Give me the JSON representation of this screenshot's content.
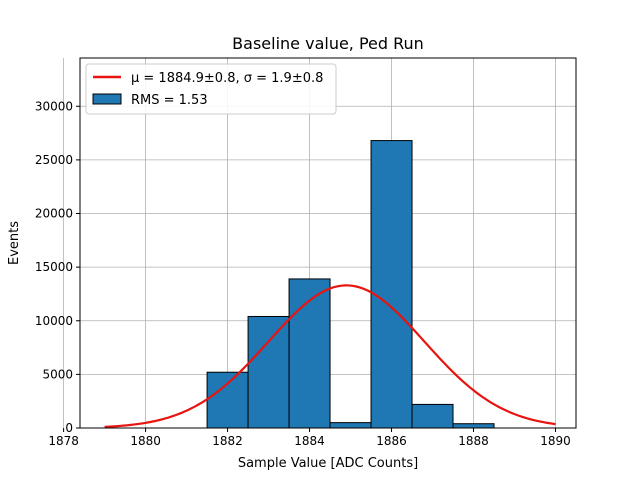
{
  "chart_data": {
    "type": "bar",
    "title": "Baseline value, Ped Run",
    "xlabel": "Sample Value [ADC Counts]",
    "ylabel": "Events",
    "xlim": [
      1878.4,
      1890.5
    ],
    "ylim": [
      0,
      34500
    ],
    "grid": true,
    "x_ticks": [
      1878,
      1880,
      1882,
      1884,
      1886,
      1888,
      1890
    ],
    "y_ticks": [
      0,
      5000,
      10000,
      15000,
      20000,
      25000,
      30000
    ],
    "histogram": {
      "name": "RMS = 1.53",
      "bin_edges": [
        1881.5,
        1882.5,
        1883.5,
        1884.5,
        1885.5,
        1886.5,
        1887.5,
        1888.5
      ],
      "values": [
        5200,
        10400,
        13900,
        500,
        26800,
        2200,
        400
      ]
    },
    "fit": {
      "name": "μ = 1884.9±0.8, σ = 1.9±0.8",
      "mu": 1884.9,
      "sigma": 1.9,
      "amplitude": 13300,
      "x_range": [
        1879.0,
        1890.0
      ]
    },
    "legend": {
      "placement": "upper-left",
      "entries": [
        {
          "label": "μ = 1884.9±0.8, σ = 1.9±0.8",
          "kind": "line"
        },
        {
          "label": "RMS = 1.53",
          "kind": "patch"
        }
      ]
    },
    "colors": {
      "bar_fill": "#1f77b4",
      "bar_edge": "#000000",
      "fit_line": "#e8140f",
      "grid": "#b0b0b0"
    }
  }
}
